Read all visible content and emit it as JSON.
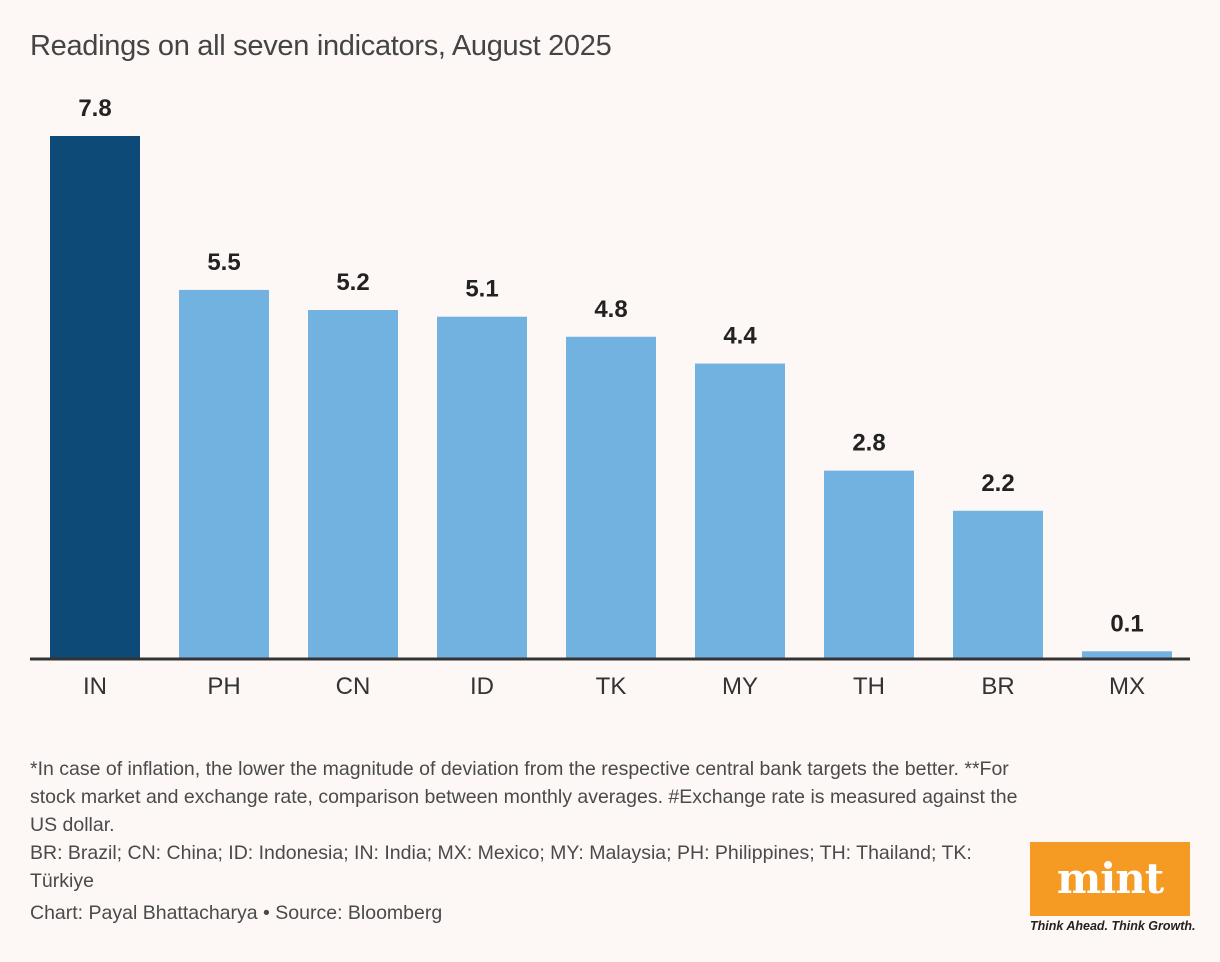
{
  "chart_data": {
    "type": "bar",
    "title": "Readings on all seven indicators, August 2025",
    "categories": [
      "IN",
      "PH",
      "CN",
      "ID",
      "TK",
      "MY",
      "TH",
      "BR",
      "MX"
    ],
    "values": [
      7.8,
      5.5,
      5.2,
      5.1,
      4.8,
      4.4,
      2.8,
      2.2,
      0.1
    ],
    "value_labels": [
      "7.8",
      "5.5",
      "5.2",
      "5.1",
      "4.8",
      "4.4",
      "2.8",
      "2.2",
      "0.1"
    ],
    "highlight_index": 0,
    "xlabel": "",
    "ylabel": "",
    "ylim": [
      0,
      7.8
    ],
    "grid": false,
    "colors": {
      "highlight": "#0d4a78",
      "default": "#72b2e0",
      "baseline": "#333333"
    }
  },
  "notes": [
    "*In case of inflation, the lower the magnitude of deviation from the respective central bank targets the better. **For stock market and exchange rate, comparison between monthly averages. #Exchange rate is measured against the US dollar.",
    "BR: Brazil; CN: China; ID: Indonesia; IN: India; MX: Mexico; MY: Malaysia; PH: Philippines; TH: Thailand; TK: Türkiye"
  ],
  "credit": "Chart: Payal Bhattacharya • Source: Bloomberg",
  "logo": {
    "text": "mint",
    "tagline": "Think Ahead. Think Growth.",
    "color": "#f59a23"
  }
}
